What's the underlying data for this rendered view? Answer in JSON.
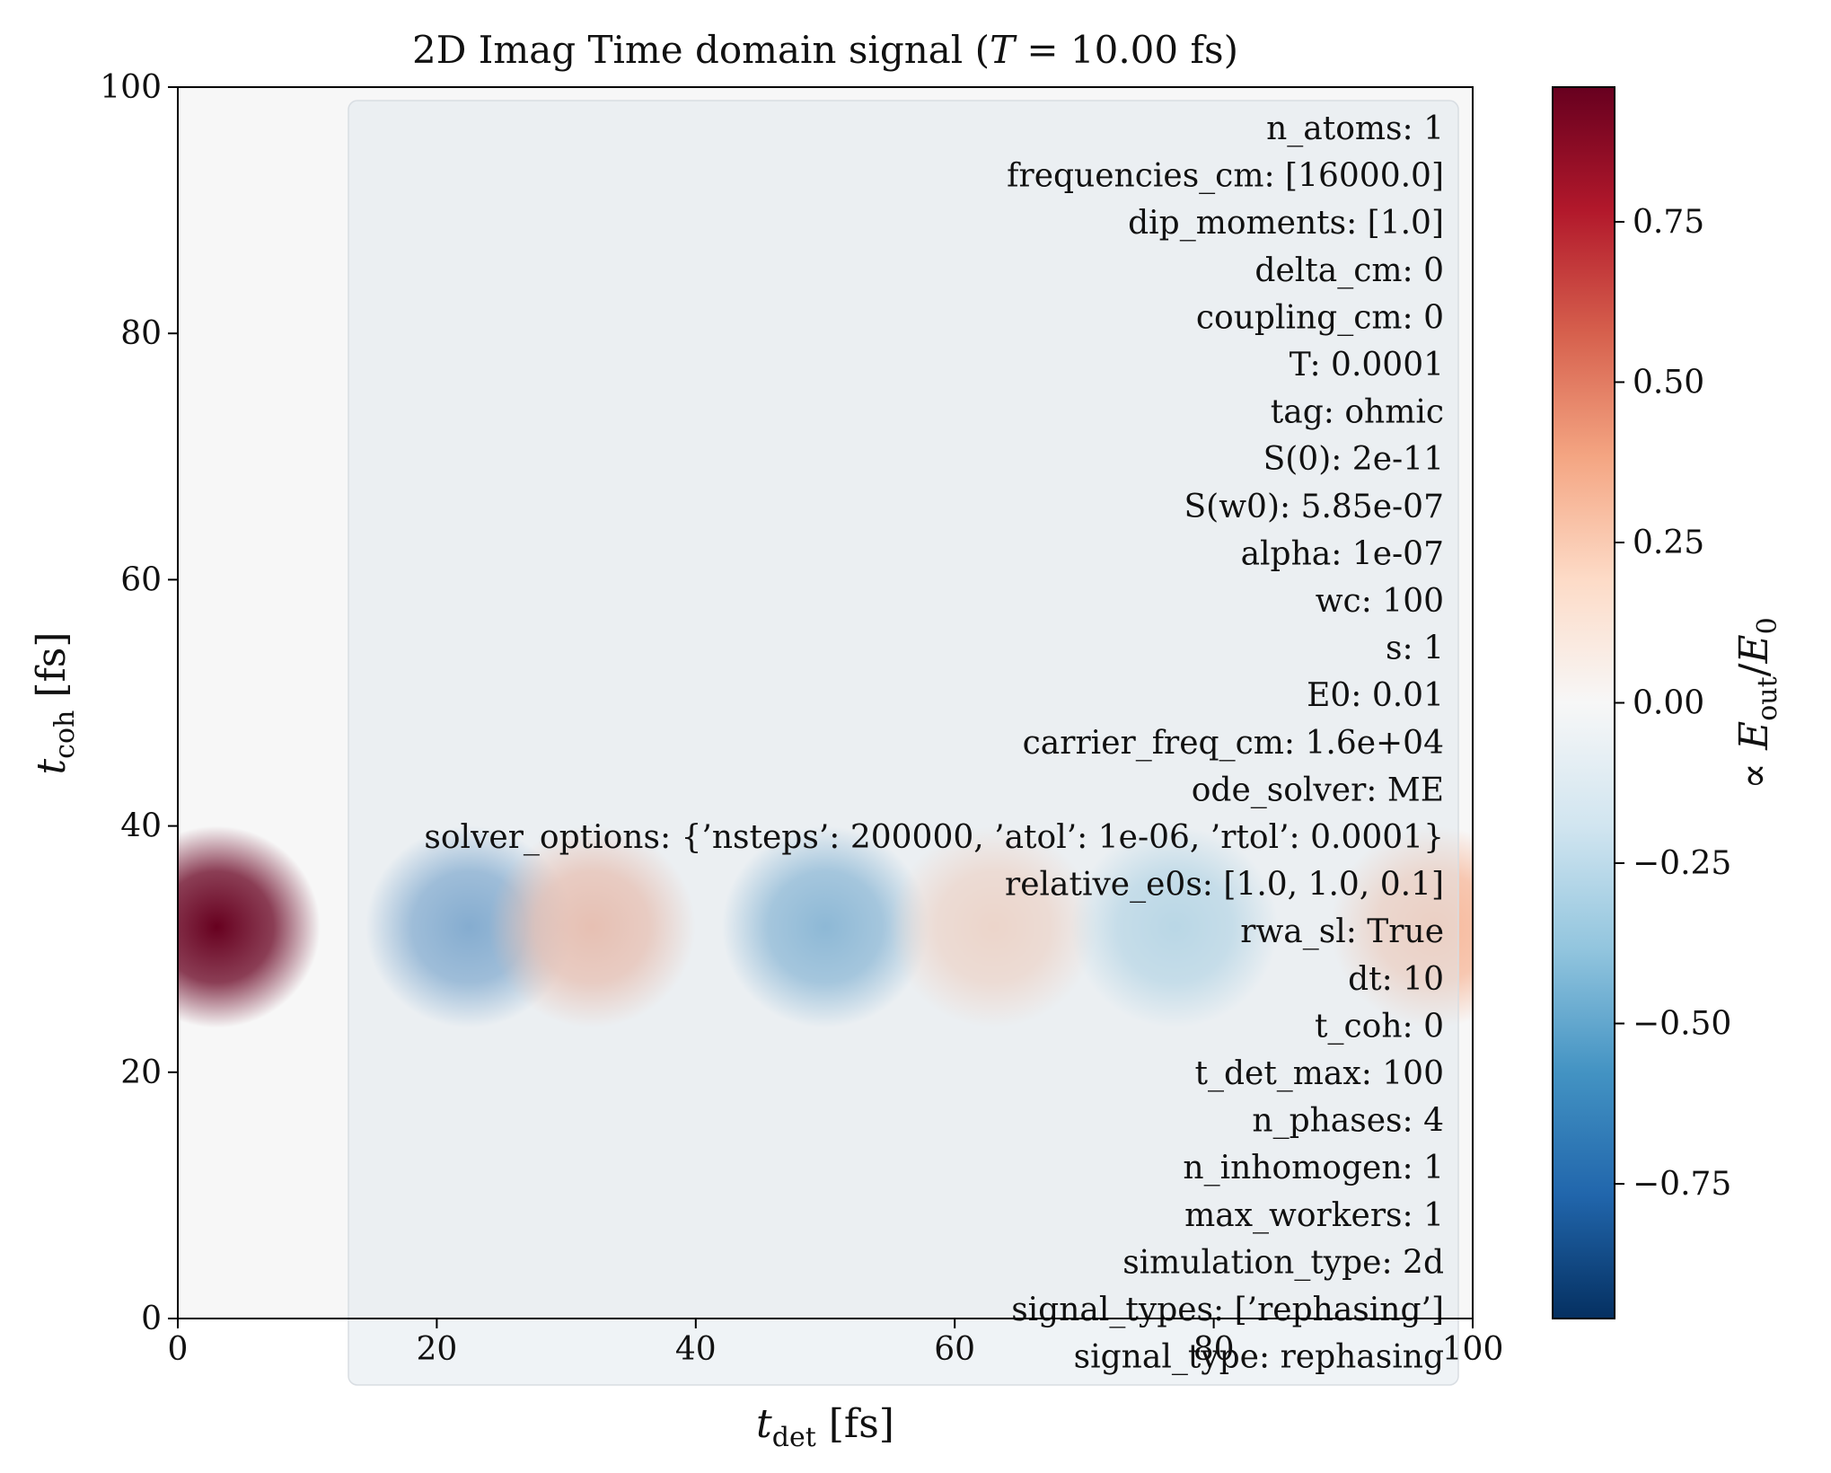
{
  "chart_data": {
    "type": "heatmap",
    "title": "2D Imag Time domain signal (T = 10.00 fs)",
    "title_parts": {
      "prefix": "2D Imag Time domain signal (",
      "var": "T",
      "eq": " = 10.00 fs)"
    },
    "xlabel": {
      "base": "t",
      "sub": "det",
      "unit": " [fs]"
    },
    "ylabel": {
      "base": "t",
      "sub": "coh",
      "unit": " [fs]"
    },
    "colorbar_label": {
      "prefix": "∝ ",
      "num": "E",
      "num_sub": "out",
      "slash": "/",
      "den": "E",
      "den_sub": "0"
    },
    "xlim": [
      0,
      100
    ],
    "ylim": [
      0,
      100
    ],
    "x_ticks": [
      "0",
      "20",
      "40",
      "60",
      "80",
      "100"
    ],
    "y_ticks": [
      "0",
      "20",
      "40",
      "60",
      "80",
      "100"
    ],
    "colorbar_range": [
      -0.96,
      0.96
    ],
    "colorbar_ticks": [
      "0.75",
      "0.50",
      "0.25",
      "0.00",
      "−0.25",
      "−0.50",
      "−0.75"
    ],
    "colormap": "RdBu_r",
    "colormap_colors": [
      "#053061",
      "#2166ac",
      "#4393c3",
      "#92c5de",
      "#d1e5f0",
      "#f7f7f7",
      "#fddbc7",
      "#f4a582",
      "#d6604d",
      "#b2182b",
      "#67001f"
    ],
    "background_color": "#f7f7f7",
    "signal_band": {
      "t_coh_center": 31.8,
      "t_coh_halfwidth": 8.2
    },
    "blobs": [
      {
        "t_det": 3,
        "value": 0.96
      },
      {
        "t_det": 22.5,
        "value": -0.72
      },
      {
        "t_det": 32,
        "value": 0.42
      },
      {
        "t_det": 50,
        "value": -0.62
      },
      {
        "t_det": 63,
        "value": 0.28
      },
      {
        "t_det": 77,
        "value": -0.38
      },
      {
        "t_det": 97,
        "value": 0.32
      }
    ],
    "annotation_lines": [
      "n_atoms: 1",
      "frequencies_cm: [16000.0]",
      "dip_moments: [1.0]",
      "delta_cm: 0",
      "coupling_cm: 0",
      "T: 0.0001",
      "tag: ohmic",
      "S(0): 2e-11",
      "S(w0): 5.85e-07",
      "alpha: 1e-07",
      "wc: 100",
      "s: 1",
      "E0: 0.01",
      "carrier_freq_cm: 1.6e+04",
      "ode_solver: ME",
      "solver_options: {’nsteps’: 200000, ’atol’: 1e-06, ’rtol’: 0.0001}",
      "relative_e0s: [1.0, 1.0, 0.1]",
      "rwa_sl: True",
      "dt: 10",
      "t_coh: 0",
      "t_det_max: 100",
      "n_phases: 4",
      "n_inhomogen: 1",
      "max_workers: 1",
      "simulation_type: 2d",
      "signal_types: [’rephasing’]",
      "signal_type: rephasing"
    ]
  }
}
